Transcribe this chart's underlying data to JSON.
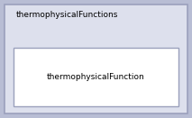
{
  "outer_label": "thermophysicalFunctions",
  "inner_label": "thermophysicalFunction",
  "outer_bg": "#dde0ed",
  "outer_border": "#9aa0bc",
  "inner_bg": "#ffffff",
  "inner_border": "#9aa0bc",
  "fig_bg": "#b8bdd4",
  "font_size_outer": 6.5,
  "font_size_inner": 6.5,
  "fig_width": 2.13,
  "fig_height": 1.31,
  "dpi": 100
}
